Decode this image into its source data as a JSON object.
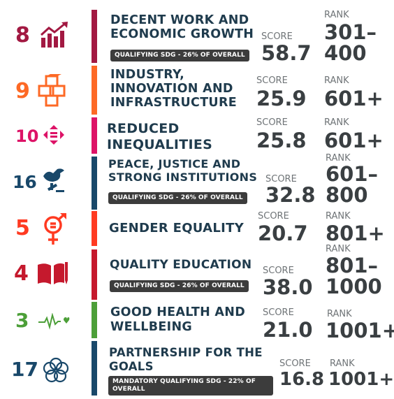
{
  "rows": [
    {
      "number": "8",
      "color": "#a21942",
      "icon": "growth-chart-icon",
      "title": "DECENT WORK AND\nECONOMIC GROWTH",
      "badge": "QUALIFYING SDG - 26% OF OVERALL",
      "score_label": "SCORE",
      "score": "58.7",
      "rank_label": "RANK",
      "rank": "301–\n400"
    },
    {
      "number": "9",
      "color": "#fd6925",
      "icon": "cubes-icon",
      "title": "INDUSTRY,\nINNOVATION AND\nINFRASTRUCTURE",
      "badge": "",
      "score_label": "SCORE",
      "score": "25.9",
      "rank_label": "RANK",
      "rank": "601+"
    },
    {
      "number": "10",
      "color": "#dd1367",
      "icon": "equality-arrows-icon",
      "title": "REDUCED\nINEQUALITIES",
      "badge": "",
      "score_label": "SCORE",
      "score": "25.8",
      "rank_label": "RANK",
      "rank": "601+"
    },
    {
      "number": "16",
      "color": "#19486a",
      "icon": "dove-gavel-icon",
      "title": "PEACE, JUSTICE AND\nSTRONG INSTITUTIONS",
      "badge": "QUALIFYING SDG - 26% OF OVERALL",
      "score_label": "SCORE",
      "score": "32.8",
      "rank_label": "RANK",
      "rank": "601–\n800"
    },
    {
      "number": "5",
      "color": "#ff3a21",
      "icon": "gender-symbol-icon",
      "title": "GENDER EQUALITY",
      "badge": "",
      "score_label": "SCORE",
      "score": "20.7",
      "rank_label": "RANK",
      "rank": "801+"
    },
    {
      "number": "4",
      "color": "#c5192d",
      "icon": "book-pencil-icon",
      "title": "QUALITY EDUCATION",
      "badge": "QUALIFYING SDG - 26% OF OVERALL",
      "score_label": "SCORE",
      "score": "38.0",
      "rank_label": "RANK",
      "rank": "801–\n1000"
    },
    {
      "number": "3",
      "color": "#4c9f38",
      "icon": "heartbeat-icon",
      "title": "GOOD HEALTH AND\nWELLBEING",
      "badge": "",
      "score_label": "SCORE",
      "score": "21.0",
      "rank_label": "RANK",
      "rank": "1001+"
    },
    {
      "number": "17",
      "color": "#19486a",
      "icon": "interlinked-rings-icon",
      "title": "PARTNERSHIP FOR THE\nGOALS",
      "badge": "MANDATORY QUALIFYING SDG - 22% OF\nOVERALL",
      "score_label": "SCORE",
      "score": "16.8",
      "rank_label": "RANK",
      "rank": "1001+"
    }
  ]
}
